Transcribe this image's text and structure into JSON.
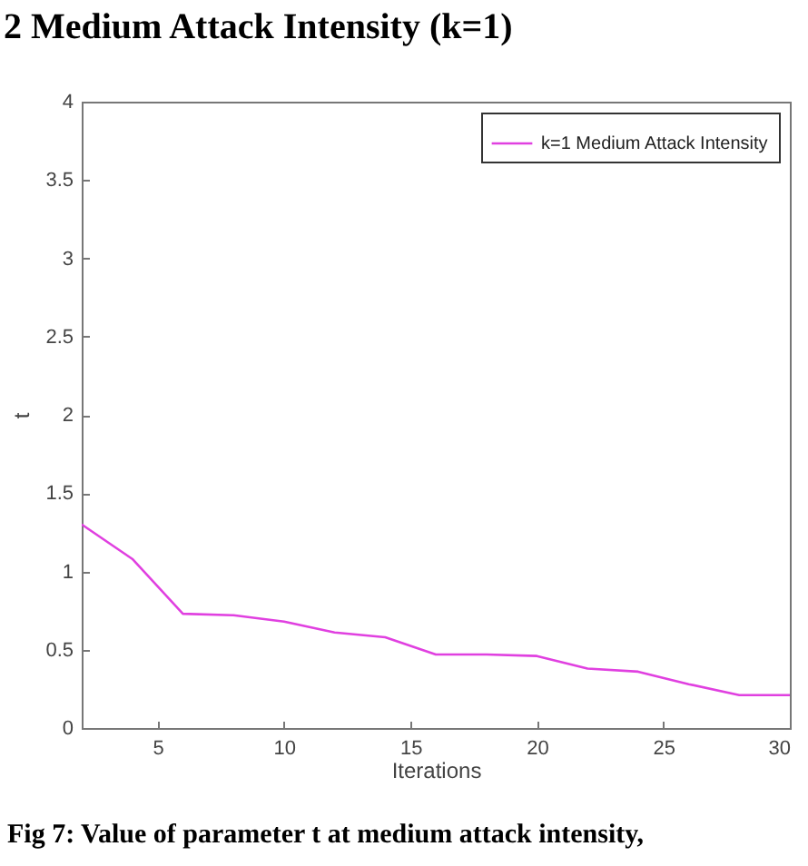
{
  "chart_data": {
    "type": "line",
    "title": "2 Medium Attack Intensity (k=1)",
    "xlabel": "Iterations",
    "ylabel": "t",
    "annotations": [
      "Fig 7: Value of parameter t at medium attack intensity,"
    ],
    "x": [
      2,
      4,
      6,
      8,
      10,
      12,
      14,
      16,
      18,
      20,
      22,
      24,
      26,
      28,
      30
    ],
    "series": [
      {
        "name": "k=1 Medium Attack Intensity",
        "color": "#e040e0",
        "values": [
          1.3,
          1.08,
          0.73,
          0.72,
          0.68,
          0.61,
          0.58,
          0.47,
          0.47,
          0.46,
          0.38,
          0.36,
          0.28,
          0.21,
          0.21
        ]
      }
    ],
    "xlim": [
      2,
      30
    ],
    "xticks": [
      5,
      10,
      15,
      20,
      25,
      30
    ],
    "ylim": [
      0,
      4
    ],
    "yticks": [
      0,
      0.5,
      1,
      1.5,
      2,
      2.5,
      3,
      3.5,
      4
    ],
    "grid": false,
    "legend": "top right",
    "marker": "none",
    "line_style": "solid"
  }
}
